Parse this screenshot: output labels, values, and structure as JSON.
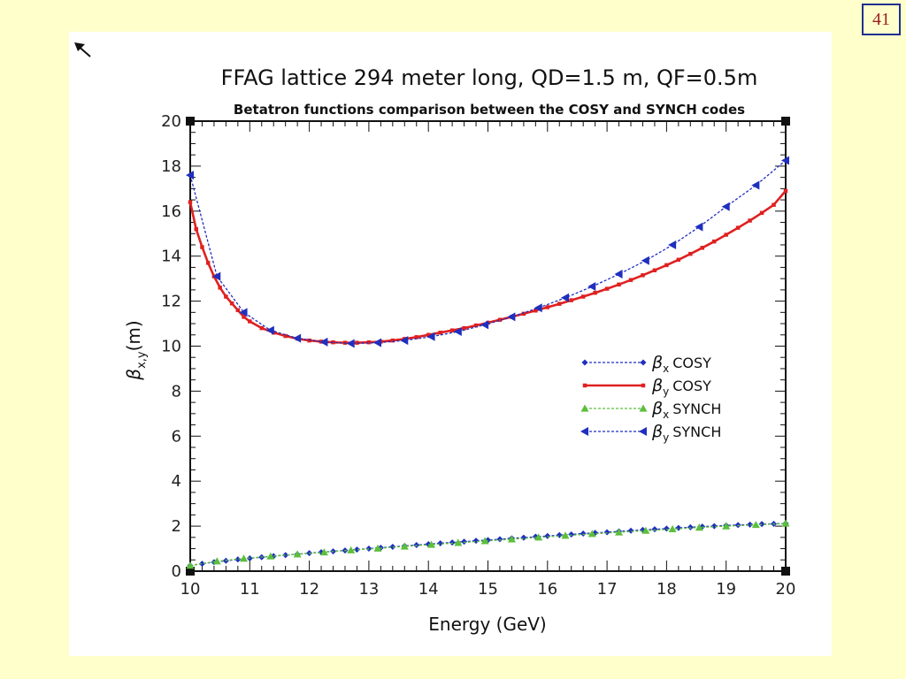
{
  "slide_number": "41",
  "chart_data": {
    "type": "line",
    "title": "FFAG lattice 294 meter long, QD=1.5 m, QF=0.5m",
    "subtitle": "Betatron functions comparison between the COSY and SYNCH codes",
    "xlabel": "Energy (GeV)",
    "ylabel_symbol": "β",
    "ylabel_subscript": "x,y",
    "ylabel_unit": "(m)",
    "xlim": [
      10,
      20
    ],
    "ylim": [
      0,
      20
    ],
    "xticks": [
      "10",
      "11",
      "12",
      "13",
      "14",
      "15",
      "16",
      "17",
      "18",
      "19",
      "20"
    ],
    "yticks": [
      "0",
      "2",
      "4",
      "6",
      "8",
      "10",
      "12",
      "14",
      "16",
      "18",
      "20"
    ],
    "grid": false,
    "legend_position": "center-right",
    "series": [
      {
        "name": "COSY",
        "legend_symbol": "β",
        "legend_subscript": "x",
        "color": "#1f2fbf",
        "dashed": true,
        "marker": "diamond",
        "x": [
          10.0,
          10.2,
          10.4,
          10.6,
          10.8,
          11.0,
          11.2,
          11.4,
          11.6,
          11.8,
          12.0,
          12.2,
          12.4,
          12.6,
          12.8,
          13.0,
          13.2,
          13.4,
          13.6,
          13.8,
          14.0,
          14.2,
          14.4,
          14.6,
          14.8,
          15.0,
          15.2,
          15.4,
          15.6,
          15.8,
          16.0,
          16.2,
          16.4,
          16.6,
          16.8,
          17.0,
          17.2,
          17.4,
          17.6,
          17.8,
          18.0,
          18.2,
          18.4,
          18.6,
          18.8,
          19.0,
          19.2,
          19.4,
          19.6,
          19.8,
          20.0
        ],
        "y": [
          0.25,
          0.33,
          0.4,
          0.46,
          0.52,
          0.57,
          0.62,
          0.67,
          0.71,
          0.75,
          0.8,
          0.84,
          0.88,
          0.92,
          0.96,
          1.0,
          1.04,
          1.08,
          1.12,
          1.16,
          1.2,
          1.24,
          1.27,
          1.31,
          1.35,
          1.38,
          1.42,
          1.46,
          1.49,
          1.53,
          1.56,
          1.6,
          1.63,
          1.67,
          1.7,
          1.73,
          1.77,
          1.8,
          1.83,
          1.86,
          1.89,
          1.92,
          1.95,
          1.98,
          2.0,
          2.03,
          2.05,
          2.07,
          2.09,
          2.1,
          2.12
        ]
      },
      {
        "name": "COSY",
        "legend_symbol": "β",
        "legend_subscript": "y",
        "color": "#e02020",
        "dashed": false,
        "marker": "square",
        "x": [
          10.0,
          10.1,
          10.2,
          10.3,
          10.4,
          10.5,
          10.6,
          10.7,
          10.8,
          10.9,
          11.0,
          11.2,
          11.4,
          11.6,
          11.8,
          12.0,
          12.2,
          12.4,
          12.6,
          12.8,
          13.0,
          13.2,
          13.4,
          13.6,
          13.8,
          14.0,
          14.2,
          14.4,
          14.6,
          14.8,
          15.0,
          15.2,
          15.4,
          15.6,
          15.8,
          16.0,
          16.2,
          16.4,
          16.6,
          16.8,
          17.0,
          17.2,
          17.4,
          17.6,
          17.8,
          18.0,
          18.2,
          18.4,
          18.6,
          18.8,
          19.0,
          19.2,
          19.4,
          19.6,
          19.8,
          20.0
        ],
        "y": [
          16.4,
          15.2,
          14.4,
          13.7,
          13.1,
          12.6,
          12.2,
          11.9,
          11.6,
          11.3,
          11.1,
          10.8,
          10.6,
          10.45,
          10.33,
          10.25,
          10.2,
          10.17,
          10.15,
          10.15,
          10.17,
          10.2,
          10.25,
          10.32,
          10.4,
          10.5,
          10.6,
          10.7,
          10.8,
          10.92,
          11.04,
          11.17,
          11.3,
          11.44,
          11.58,
          11.73,
          11.88,
          12.04,
          12.2,
          12.37,
          12.55,
          12.74,
          12.94,
          13.15,
          13.37,
          13.6,
          13.84,
          14.1,
          14.37,
          14.65,
          14.95,
          15.26,
          15.58,
          15.92,
          16.28,
          16.9
        ]
      },
      {
        "name": "SYNCH",
        "legend_symbol": "β",
        "legend_subscript": "x",
        "color": "#5cbf3c",
        "dashed": true,
        "marker": "triangle-up",
        "x": [
          10.0,
          10.45,
          10.9,
          11.35,
          11.8,
          12.25,
          12.7,
          13.15,
          13.6,
          14.05,
          14.5,
          14.95,
          15.4,
          15.85,
          16.3,
          16.75,
          17.2,
          17.65,
          18.1,
          18.55,
          19.0,
          19.5,
          20.0
        ],
        "y": [
          0.25,
          0.44,
          0.56,
          0.66,
          0.75,
          0.84,
          0.93,
          1.01,
          1.1,
          1.18,
          1.26,
          1.34,
          1.42,
          1.5,
          1.58,
          1.66,
          1.73,
          1.8,
          1.87,
          1.94,
          2.0,
          2.06,
          2.12
        ]
      },
      {
        "name": "SYNCH",
        "legend_symbol": "β",
        "legend_subscript": "y",
        "color": "#1f2fbf",
        "dashed": true,
        "marker": "triangle-left",
        "x": [
          10.0,
          10.45,
          10.9,
          11.35,
          11.8,
          12.25,
          12.7,
          13.15,
          13.6,
          14.05,
          14.5,
          14.95,
          15.4,
          15.85,
          16.3,
          16.75,
          17.2,
          17.65,
          18.1,
          18.55,
          19.0,
          19.5,
          20.0
        ],
        "y": [
          17.6,
          13.1,
          11.5,
          10.7,
          10.35,
          10.18,
          10.12,
          10.15,
          10.25,
          10.42,
          10.65,
          10.95,
          11.3,
          11.7,
          12.15,
          12.65,
          13.2,
          13.8,
          14.5,
          15.3,
          16.2,
          17.15,
          18.25
        ]
      }
    ]
  }
}
